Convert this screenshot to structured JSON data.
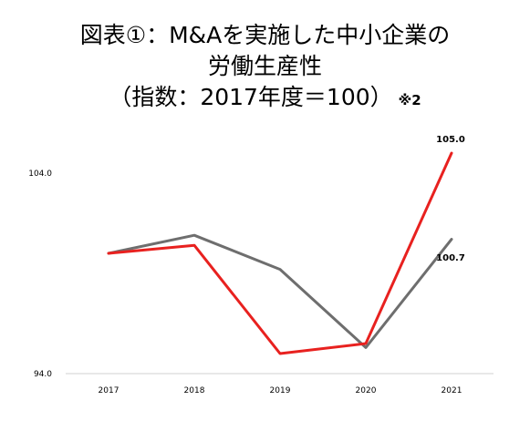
{
  "title": {
    "line1": "図表①：M&Aを実施した中小企業の",
    "line2": "労働生産性",
    "line3": "（指数：2017年度＝100）",
    "note": "※2"
  },
  "chart_data": {
    "type": "line",
    "title": "図表①：M&Aを実施した中小企業の労働生産性（指数：2017年度＝100）",
    "categories": [
      "2017",
      "2018",
      "2019",
      "2020",
      "2021"
    ],
    "ylim": [
      94.0,
      104.0
    ],
    "yticks": [
      "94.0",
      "104.0"
    ],
    "grid": false,
    "legend": "none",
    "series": [
      {
        "color": "#e8211f",
        "values": [
          100.0,
          100.4,
          95.0,
          95.5,
          105.0
        ],
        "end_label": "105.0"
      },
      {
        "color": "#6e6e6e",
        "values": [
          100.0,
          100.9,
          99.2,
          95.3,
          100.7
        ],
        "end_label": "100.7"
      }
    ]
  }
}
